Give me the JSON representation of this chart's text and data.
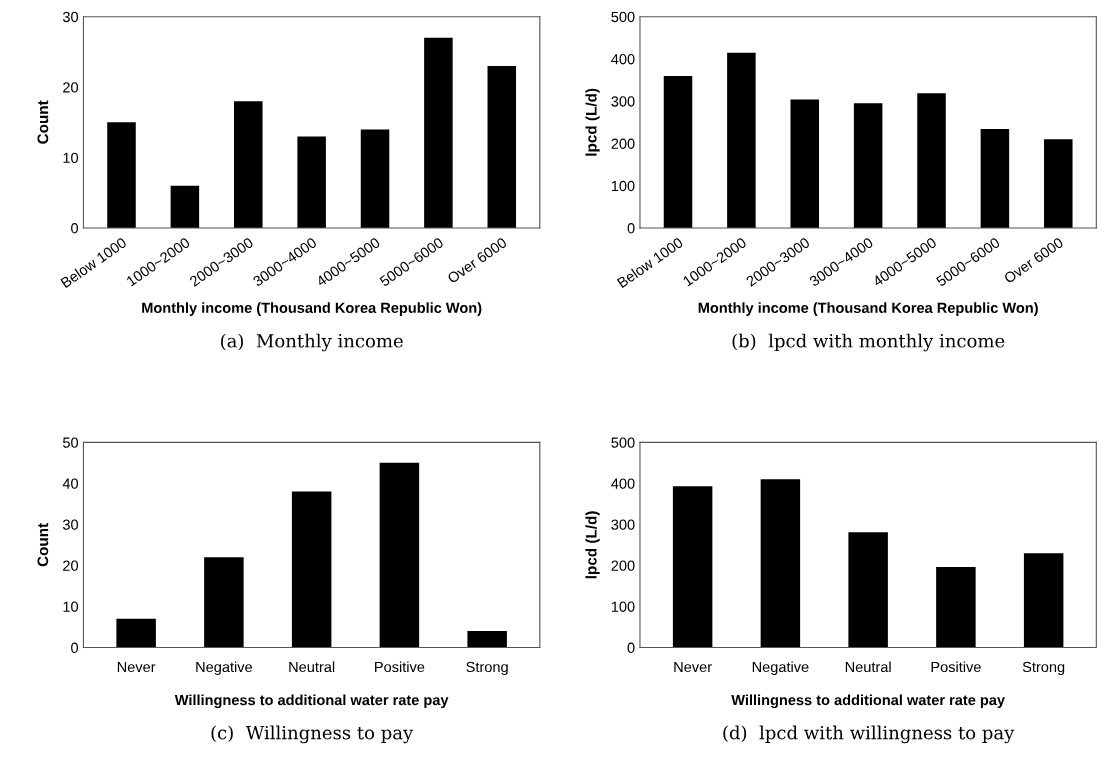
{
  "chart_data": [
    {
      "type": "bar",
      "categories": [
        "Below 1000",
        "1000~2000",
        "2000~3000",
        "3000~4000",
        "4000~5000",
        "5000~6000",
        "Over 6000"
      ],
      "values": [
        15,
        6,
        18,
        13,
        14,
        27,
        23
      ],
      "color": "#000000",
      "xlabel": "Monthly income (Thousand Korea Republic Won)",
      "ylabel": "Count",
      "ylim": [
        0,
        30
      ],
      "yticks": [
        0,
        10,
        20,
        30
      ],
      "grid": false,
      "legend": false,
      "annotations": [
        "(a)  Monthly income"
      ]
    },
    {
      "type": "bar",
      "categories": [
        "Below 1000",
        "1000~2000",
        "2000~3000",
        "3000~4000",
        "4000~5000",
        "5000~6000",
        "Over 6000"
      ],
      "values": [
        360,
        415,
        304,
        295,
        319,
        234,
        210
      ],
      "color": "#000000",
      "xlabel": "Monthly income (Thousand Korea Republic Won)",
      "ylabel": "lpcd (L/d)",
      "ylim": [
        0,
        500
      ],
      "yticks": [
        0,
        100,
        200,
        300,
        400,
        500
      ],
      "grid": false,
      "legend": false,
      "annotations": [
        "(b)  lpcd with monthly income"
      ]
    },
    {
      "type": "bar",
      "categories": [
        "Never",
        "Negative",
        "Neutral",
        "Positive",
        "Strong"
      ],
      "values": [
        7,
        22,
        38,
        45,
        4
      ],
      "color": "#000000",
      "xlabel": "Willingness to additional water rate pay",
      "ylabel": "Count",
      "ylim": [
        0,
        50
      ],
      "yticks": [
        0,
        10,
        20,
        30,
        40,
        50
      ],
      "grid": false,
      "legend": false,
      "annotations": [
        "(c)  Willingness to pay"
      ]
    },
    {
      "type": "bar",
      "categories": [
        "Never",
        "Negative",
        "Neutral",
        "Positive",
        "Strong"
      ],
      "values": [
        393,
        410,
        281,
        196,
        230
      ],
      "color": "#000000",
      "xlabel": "Willingness to additional water rate pay",
      "ylabel": "lpcd (L/d)",
      "ylim": [
        0,
        500
      ],
      "yticks": [
        0,
        100,
        200,
        300,
        400,
        500
      ],
      "grid": false,
      "legend": false,
      "annotations": [
        "(d)  lpcd with willingness to pay"
      ]
    }
  ]
}
